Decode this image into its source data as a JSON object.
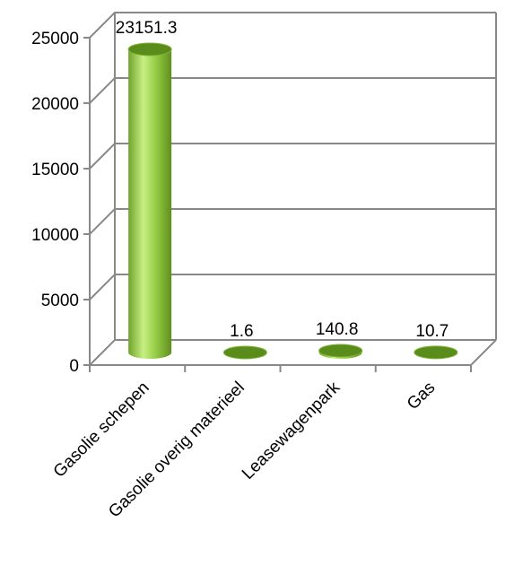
{
  "chart_data": {
    "type": "bar",
    "style": "3d-cylinder",
    "categories": [
      "Gasolie schepen",
      "Gasolie overig materieel",
      "Leasewagenpark",
      "Gas"
    ],
    "values": [
      23151.3,
      1.6,
      140.8,
      10.7
    ],
    "data_labels": [
      "23151.3",
      "1.6",
      "140.8",
      "10.7"
    ],
    "y_ticks": [
      "0",
      "5000",
      "10000",
      "15000",
      "20000",
      "25000"
    ],
    "ylim": [
      0,
      25000
    ],
    "grid": true,
    "legend": "none",
    "title": "",
    "xlabel": "",
    "ylabel": "",
    "colors": {
      "bar": "#8cc63f",
      "bar_light": "#c9ef84",
      "bar_dark": "#5f8f1e",
      "bar_top": "#5a8c1c",
      "grid": "#888888"
    }
  }
}
